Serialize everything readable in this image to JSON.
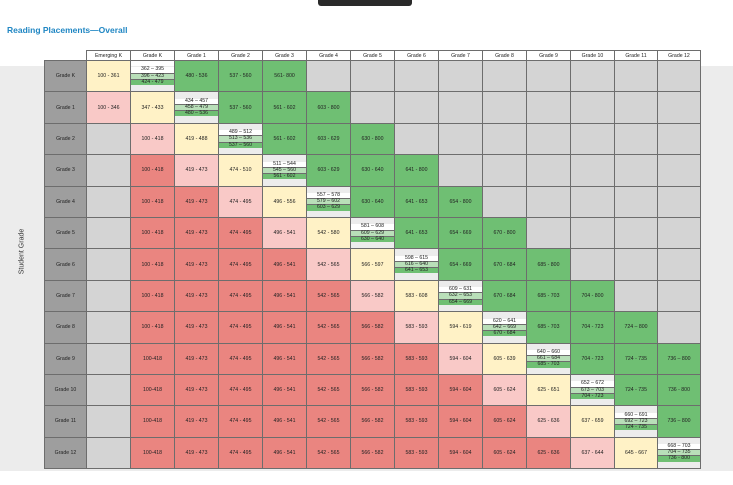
{
  "title": "Reading Placements—Overall",
  "y_axis_label": "Student Grade",
  "columns": [
    "Emerging K",
    "Grade K",
    "Grade 1",
    "Grade 2",
    "Grade 3",
    "Grade 4",
    "Grade 5",
    "Grade 6",
    "Grade 7",
    "Grade 8",
    "Grade 9",
    "Grade 10",
    "Grade 11",
    "Grade 12"
  ],
  "rows": [
    {
      "label": "Grade K",
      "cells": [
        {
          "c": "Y",
          "v": "100 - 361"
        },
        {
          "c": "S",
          "v": [
            "362 – 395",
            "396 – 423",
            "424 - 479"
          ]
        },
        {
          "c": "G",
          "v": "480 - 536"
        },
        {
          "c": "G",
          "v": "537 - 560"
        },
        {
          "c": "G",
          "v": "561- 800"
        },
        {
          "c": "X",
          "v": ""
        },
        {
          "c": "X",
          "v": ""
        },
        {
          "c": "X",
          "v": ""
        },
        {
          "c": "X",
          "v": ""
        },
        {
          "c": "X",
          "v": ""
        },
        {
          "c": "X",
          "v": ""
        },
        {
          "c": "X",
          "v": ""
        },
        {
          "c": "X",
          "v": ""
        },
        {
          "c": "X",
          "v": ""
        }
      ]
    },
    {
      "label": "Grade 1",
      "cells": [
        {
          "c": "P",
          "v": "100 - 346"
        },
        {
          "c": "Y",
          "v": "347 - 433"
        },
        {
          "c": "S",
          "v": [
            "434 – 457",
            "458 – 479",
            "480 – 536"
          ]
        },
        {
          "c": "G",
          "v": "537 - 560"
        },
        {
          "c": "G",
          "v": "561 - 602"
        },
        {
          "c": "G",
          "v": "603 - 800"
        },
        {
          "c": "X",
          "v": ""
        },
        {
          "c": "X",
          "v": ""
        },
        {
          "c": "X",
          "v": ""
        },
        {
          "c": "X",
          "v": ""
        },
        {
          "c": "X",
          "v": ""
        },
        {
          "c": "X",
          "v": ""
        },
        {
          "c": "X",
          "v": ""
        },
        {
          "c": "X",
          "v": ""
        }
      ]
    },
    {
      "label": "Grade 2",
      "cells": [
        {
          "c": "X",
          "v": ""
        },
        {
          "c": "P",
          "v": "100 - 418"
        },
        {
          "c": "Y",
          "v": "419 - 488"
        },
        {
          "c": "S",
          "v": [
            "489 – 512",
            "513 – 536",
            "537 – 560"
          ]
        },
        {
          "c": "G",
          "v": "561 - 602"
        },
        {
          "c": "G",
          "v": "603 - 629"
        },
        {
          "c": "G",
          "v": "630 - 800"
        },
        {
          "c": "X",
          "v": ""
        },
        {
          "c": "X",
          "v": ""
        },
        {
          "c": "X",
          "v": ""
        },
        {
          "c": "X",
          "v": ""
        },
        {
          "c": "X",
          "v": ""
        },
        {
          "c": "X",
          "v": ""
        },
        {
          "c": "X",
          "v": ""
        }
      ]
    },
    {
      "label": "Grade 3",
      "cells": [
        {
          "c": "X",
          "v": ""
        },
        {
          "c": "R",
          "v": "100 - 418"
        },
        {
          "c": "P",
          "v": "419 - 473"
        },
        {
          "c": "Y",
          "v": "474 - 510"
        },
        {
          "c": "S",
          "v": [
            "511 – 544",
            "545 – 560",
            "561 - 602"
          ]
        },
        {
          "c": "G",
          "v": "603 - 629"
        },
        {
          "c": "G",
          "v": "630 - 640"
        },
        {
          "c": "G",
          "v": "641 - 800"
        },
        {
          "c": "X",
          "v": ""
        },
        {
          "c": "X",
          "v": ""
        },
        {
          "c": "X",
          "v": ""
        },
        {
          "c": "X",
          "v": ""
        },
        {
          "c": "X",
          "v": ""
        },
        {
          "c": "X",
          "v": ""
        }
      ]
    },
    {
      "label": "Grade 4",
      "cells": [
        {
          "c": "X",
          "v": ""
        },
        {
          "c": "R",
          "v": "100 - 418"
        },
        {
          "c": "R",
          "v": "419 - 473"
        },
        {
          "c": "P",
          "v": "474 - 495"
        },
        {
          "c": "Y",
          "v": "496 - 556"
        },
        {
          "c": "S",
          "v": [
            "557 – 578",
            "579 – 602",
            "603 – 629"
          ]
        },
        {
          "c": "G",
          "v": "630 - 640"
        },
        {
          "c": "G",
          "v": "641 - 653"
        },
        {
          "c": "G",
          "v": "654 - 800"
        },
        {
          "c": "X",
          "v": ""
        },
        {
          "c": "X",
          "v": ""
        },
        {
          "c": "X",
          "v": ""
        },
        {
          "c": "X",
          "v": ""
        },
        {
          "c": "X",
          "v": ""
        }
      ]
    },
    {
      "label": "Grade 5",
      "cells": [
        {
          "c": "X",
          "v": ""
        },
        {
          "c": "R",
          "v": "100 - 418"
        },
        {
          "c": "R",
          "v": "419 - 473"
        },
        {
          "c": "R",
          "v": "474 - 495"
        },
        {
          "c": "P",
          "v": "496 - 541"
        },
        {
          "c": "Y",
          "v": "542 - 580"
        },
        {
          "c": "S",
          "v": [
            "581 – 608",
            "609 – 629",
            "630 – 640"
          ]
        },
        {
          "c": "G",
          "v": "641 - 653"
        },
        {
          "c": "G",
          "v": "654 - 669"
        },
        {
          "c": "G",
          "v": "670 - 800"
        },
        {
          "c": "X",
          "v": ""
        },
        {
          "c": "X",
          "v": ""
        },
        {
          "c": "X",
          "v": ""
        },
        {
          "c": "X",
          "v": ""
        }
      ]
    },
    {
      "label": "Grade 6",
      "cells": [
        {
          "c": "X",
          "v": ""
        },
        {
          "c": "R",
          "v": "100 - 418"
        },
        {
          "c": "R",
          "v": "419 - 473"
        },
        {
          "c": "R",
          "v": "474 - 495"
        },
        {
          "c": "R",
          "v": "496 - 541"
        },
        {
          "c": "P",
          "v": "542 - 565"
        },
        {
          "c": "Y",
          "v": "566 - 597"
        },
        {
          "c": "S",
          "v": [
            "598 – 615",
            "616 – 640",
            "641 – 653"
          ]
        },
        {
          "c": "G",
          "v": "654 - 669"
        },
        {
          "c": "G",
          "v": "670 - 684"
        },
        {
          "c": "G",
          "v": "685 - 800"
        },
        {
          "c": "X",
          "v": ""
        },
        {
          "c": "X",
          "v": ""
        },
        {
          "c": "X",
          "v": ""
        }
      ]
    },
    {
      "label": "Grade 7",
      "cells": [
        {
          "c": "X",
          "v": ""
        },
        {
          "c": "R",
          "v": "100 - 418"
        },
        {
          "c": "R",
          "v": "419 - 473"
        },
        {
          "c": "R",
          "v": "474 - 495"
        },
        {
          "c": "R",
          "v": "496 - 541"
        },
        {
          "c": "R",
          "v": "542 - 565"
        },
        {
          "c": "P",
          "v": "566 - 582"
        },
        {
          "c": "Y",
          "v": "583 - 608"
        },
        {
          "c": "S",
          "v": [
            "609 – 631",
            "632 – 653",
            "654 – 669"
          ]
        },
        {
          "c": "G",
          "v": "670 - 684"
        },
        {
          "c": "G",
          "v": "685 - 703"
        },
        {
          "c": "G",
          "v": "704 - 800"
        },
        {
          "c": "X",
          "v": ""
        },
        {
          "c": "X",
          "v": ""
        }
      ]
    },
    {
      "label": "Grade 8",
      "cells": [
        {
          "c": "X",
          "v": ""
        },
        {
          "c": "R",
          "v": "100 - 418"
        },
        {
          "c": "R",
          "v": "419 - 473"
        },
        {
          "c": "R",
          "v": "474 - 495"
        },
        {
          "c": "R",
          "v": "496 - 541"
        },
        {
          "c": "R",
          "v": "542 - 565"
        },
        {
          "c": "R",
          "v": "566 - 582"
        },
        {
          "c": "P",
          "v": "583 - 593"
        },
        {
          "c": "Y",
          "v": "594 - 619"
        },
        {
          "c": "S",
          "v": [
            "620 – 641",
            "642 – 669",
            "670 - 684"
          ]
        },
        {
          "c": "G",
          "v": "685 - 703"
        },
        {
          "c": "G",
          "v": "704 - 723"
        },
        {
          "c": "G",
          "v": "724 – 800"
        },
        {
          "c": "X",
          "v": ""
        }
      ]
    },
    {
      "label": "Grade 9",
      "cells": [
        {
          "c": "X",
          "v": ""
        },
        {
          "c": "R",
          "v": "100-418"
        },
        {
          "c": "R",
          "v": "419 - 473"
        },
        {
          "c": "R",
          "v": "474 - 495"
        },
        {
          "c": "R",
          "v": "496 - 541"
        },
        {
          "c": "R",
          "v": "542 - 565"
        },
        {
          "c": "R",
          "v": "566 - 582"
        },
        {
          "c": "R",
          "v": "583 - 593"
        },
        {
          "c": "P",
          "v": "594 - 604"
        },
        {
          "c": "Y",
          "v": "605 - 639"
        },
        {
          "c": "S",
          "v": [
            "640 – 660",
            "661 – 684",
            "685 - 703"
          ]
        },
        {
          "c": "G",
          "v": "704 - 723"
        },
        {
          "c": "G",
          "v": "724 - 735"
        },
        {
          "c": "G",
          "v": "736 – 800"
        }
      ]
    },
    {
      "label": "Grade 10",
      "cells": [
        {
          "c": "X",
          "v": ""
        },
        {
          "c": "R",
          "v": "100-418"
        },
        {
          "c": "R",
          "v": "419 - 473"
        },
        {
          "c": "R",
          "v": "474 - 495"
        },
        {
          "c": "R",
          "v": "496 - 541"
        },
        {
          "c": "R",
          "v": "542 - 565"
        },
        {
          "c": "R",
          "v": "566 - 582"
        },
        {
          "c": "R",
          "v": "583 - 593"
        },
        {
          "c": "R",
          "v": "594 - 604"
        },
        {
          "c": "P",
          "v": "605 - 624"
        },
        {
          "c": "Y",
          "v": "625 - 651"
        },
        {
          "c": "S",
          "v": [
            "652 – 672",
            "673 – 703",
            "704 - 723"
          ]
        },
        {
          "c": "G",
          "v": "724 - 735"
        },
        {
          "c": "G",
          "v": "736 - 800"
        }
      ]
    },
    {
      "label": "Grade 11",
      "cells": [
        {
          "c": "X",
          "v": ""
        },
        {
          "c": "R",
          "v": "100-418"
        },
        {
          "c": "R",
          "v": "419 - 473"
        },
        {
          "c": "R",
          "v": "474 - 495"
        },
        {
          "c": "R",
          "v": "496 - 541"
        },
        {
          "c": "R",
          "v": "542 - 565"
        },
        {
          "c": "R",
          "v": "566 - 582"
        },
        {
          "c": "R",
          "v": "583 - 593"
        },
        {
          "c": "R",
          "v": "594 - 604"
        },
        {
          "c": "R",
          "v": "605 - 624"
        },
        {
          "c": "P",
          "v": "625 - 636"
        },
        {
          "c": "Y",
          "v": "637 - 659"
        },
        {
          "c": "S",
          "v": [
            "660 – 691",
            "692 – 723",
            "724 - 735"
          ]
        },
        {
          "c": "G",
          "v": "736 – 800"
        }
      ]
    },
    {
      "label": "Grade 12",
      "cells": [
        {
          "c": "X",
          "v": ""
        },
        {
          "c": "R",
          "v": "100-418"
        },
        {
          "c": "R",
          "v": "419 - 473"
        },
        {
          "c": "R",
          "v": "474 - 495"
        },
        {
          "c": "R",
          "v": "496 - 541"
        },
        {
          "c": "R",
          "v": "542 - 565"
        },
        {
          "c": "R",
          "v": "566 - 582"
        },
        {
          "c": "R",
          "v": "583 - 593"
        },
        {
          "c": "R",
          "v": "594 - 604"
        },
        {
          "c": "R",
          "v": "605 - 624"
        },
        {
          "c": "R",
          "v": "625 - 636"
        },
        {
          "c": "P",
          "v": "637 - 644"
        },
        {
          "c": "Y",
          "v": "645 - 667"
        },
        {
          "c": "S",
          "v": [
            "668 – 703",
            "704 – 735",
            "736 - 800"
          ]
        }
      ]
    }
  ]
}
